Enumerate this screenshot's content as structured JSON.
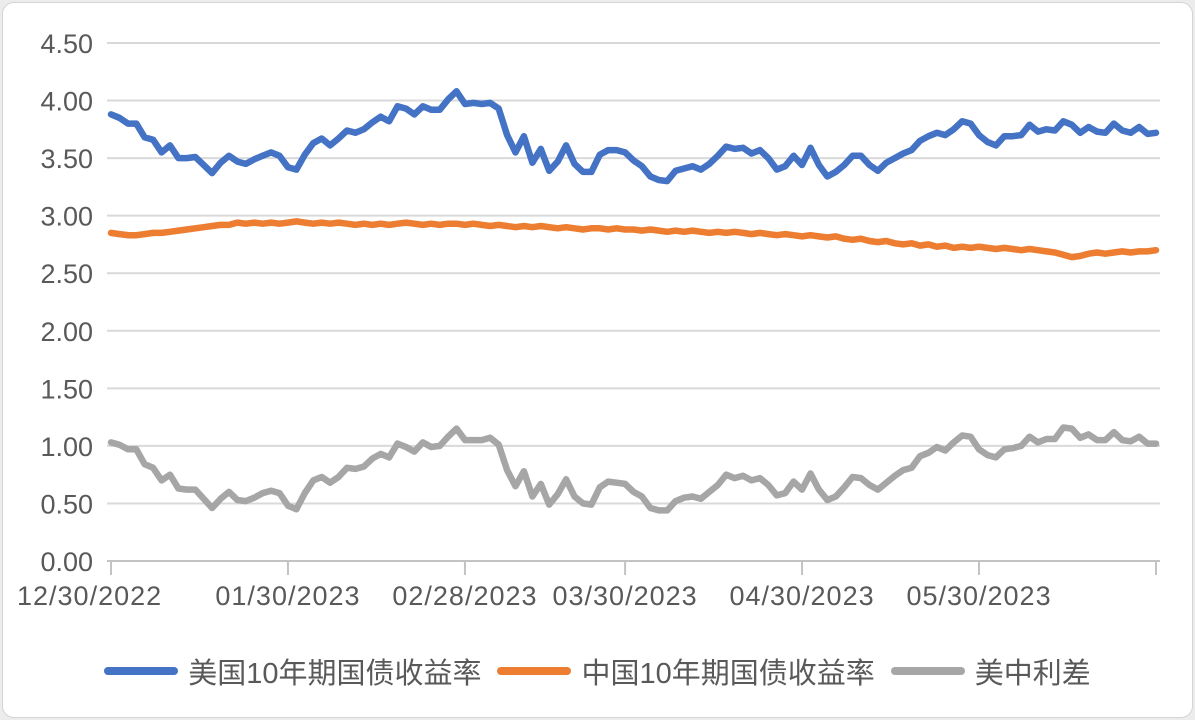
{
  "chart_data": {
    "type": "line",
    "title": "",
    "xlabel": "",
    "ylabel": "",
    "ylim": [
      0,
      4.5
    ],
    "y_tick_labels": [
      "0.00",
      "0.50",
      "1.00",
      "1.50",
      "2.00",
      "2.50",
      "3.00",
      "3.50",
      "4.00",
      "4.50"
    ],
    "x_tick_labels": [
      "12/30/2022",
      "01/30/2023",
      "02/28/2023",
      "03/30/2023",
      "04/30/2023",
      "05/30/2023"
    ],
    "x_tick_indices": [
      0,
      21,
      42,
      61,
      82,
      103
    ],
    "x_axis_end_tick_index": 124,
    "n_points": 125,
    "grid": "horizontal",
    "legend_position": "bottom",
    "grid_color": "#d9d9d9",
    "axis_color": "#c3c3c3",
    "tick_text_color": "#595959",
    "series": [
      {
        "id": "us-10y-yield",
        "name": "美国10年期国债收益率",
        "color": "#4472C4",
        "values": [
          3.88,
          3.85,
          3.8,
          3.8,
          3.68,
          3.66,
          3.55,
          3.61,
          3.5,
          3.5,
          3.51,
          3.44,
          3.37,
          3.46,
          3.52,
          3.47,
          3.45,
          3.49,
          3.52,
          3.55,
          3.52,
          3.42,
          3.4,
          3.53,
          3.63,
          3.67,
          3.61,
          3.67,
          3.74,
          3.72,
          3.75,
          3.81,
          3.86,
          3.82,
          3.95,
          3.93,
          3.88,
          3.95,
          3.92,
          3.92,
          4.01,
          4.08,
          3.97,
          3.98,
          3.97,
          3.98,
          3.93,
          3.7,
          3.55,
          3.69,
          3.46,
          3.58,
          3.39,
          3.47,
          3.61,
          3.45,
          3.38,
          3.38,
          3.53,
          3.57,
          3.57,
          3.55,
          3.48,
          3.43,
          3.34,
          3.31,
          3.3,
          3.39,
          3.41,
          3.43,
          3.4,
          3.45,
          3.52,
          3.6,
          3.58,
          3.59,
          3.54,
          3.57,
          3.5,
          3.4,
          3.43,
          3.52,
          3.44,
          3.59,
          3.44,
          3.34,
          3.38,
          3.44,
          3.52,
          3.52,
          3.44,
          3.39,
          3.46,
          3.5,
          3.54,
          3.57,
          3.65,
          3.69,
          3.72,
          3.7,
          3.75,
          3.82,
          3.8,
          3.7,
          3.64,
          3.61,
          3.69,
          3.69,
          3.7,
          3.79,
          3.73,
          3.75,
          3.74,
          3.82,
          3.79,
          3.72,
          3.77,
          3.73,
          3.72,
          3.8,
          3.74,
          3.72,
          3.77,
          3.71,
          3.72
        ]
      },
      {
        "id": "china-10y-yield",
        "name": "中国10年期国债收益率",
        "color": "#ED7D31",
        "values": [
          2.85,
          2.84,
          2.83,
          2.83,
          2.84,
          2.85,
          2.85,
          2.86,
          2.87,
          2.88,
          2.89,
          2.9,
          2.91,
          2.92,
          2.92,
          2.94,
          2.93,
          2.94,
          2.93,
          2.94,
          2.93,
          2.94,
          2.95,
          2.94,
          2.93,
          2.94,
          2.93,
          2.94,
          2.93,
          2.92,
          2.93,
          2.92,
          2.93,
          2.92,
          2.93,
          2.94,
          2.93,
          2.92,
          2.93,
          2.92,
          2.93,
          2.93,
          2.92,
          2.93,
          2.92,
          2.91,
          2.92,
          2.91,
          2.9,
          2.91,
          2.9,
          2.91,
          2.9,
          2.89,
          2.9,
          2.89,
          2.88,
          2.89,
          2.89,
          2.88,
          2.89,
          2.88,
          2.88,
          2.87,
          2.88,
          2.87,
          2.86,
          2.87,
          2.86,
          2.87,
          2.86,
          2.85,
          2.86,
          2.85,
          2.86,
          2.85,
          2.84,
          2.85,
          2.84,
          2.83,
          2.84,
          2.83,
          2.82,
          2.83,
          2.82,
          2.81,
          2.82,
          2.8,
          2.79,
          2.8,
          2.78,
          2.77,
          2.78,
          2.76,
          2.75,
          2.76,
          2.74,
          2.75,
          2.73,
          2.74,
          2.72,
          2.73,
          2.72,
          2.73,
          2.72,
          2.71,
          2.72,
          2.71,
          2.7,
          2.71,
          2.7,
          2.69,
          2.68,
          2.66,
          2.64,
          2.65,
          2.67,
          2.68,
          2.67,
          2.68,
          2.69,
          2.68,
          2.69,
          2.69,
          2.7
        ]
      },
      {
        "id": "us-china-spread",
        "name": "美中利差",
        "color": "#A6A6A6",
        "values": [
          1.03,
          1.01,
          0.97,
          0.97,
          0.84,
          0.81,
          0.7,
          0.75,
          0.63,
          0.62,
          0.62,
          0.54,
          0.46,
          0.54,
          0.6,
          0.53,
          0.52,
          0.55,
          0.59,
          0.61,
          0.59,
          0.48,
          0.45,
          0.59,
          0.7,
          0.73,
          0.68,
          0.73,
          0.81,
          0.8,
          0.82,
          0.89,
          0.93,
          0.9,
          1.02,
          0.99,
          0.95,
          1.03,
          0.99,
          1.0,
          1.08,
          1.15,
          1.05,
          1.05,
          1.05,
          1.07,
          1.01,
          0.79,
          0.65,
          0.78,
          0.56,
          0.67,
          0.49,
          0.58,
          0.71,
          0.56,
          0.5,
          0.49,
          0.64,
          0.69,
          0.68,
          0.67,
          0.6,
          0.56,
          0.46,
          0.44,
          0.44,
          0.52,
          0.55,
          0.56,
          0.54,
          0.6,
          0.66,
          0.75,
          0.72,
          0.74,
          0.7,
          0.72,
          0.66,
          0.57,
          0.59,
          0.69,
          0.62,
          0.76,
          0.62,
          0.53,
          0.56,
          0.64,
          0.73,
          0.72,
          0.66,
          0.62,
          0.68,
          0.74,
          0.79,
          0.81,
          0.91,
          0.94,
          0.99,
          0.96,
          1.03,
          1.09,
          1.08,
          0.97,
          0.92,
          0.9,
          0.97,
          0.98,
          1.0,
          1.08,
          1.03,
          1.06,
          1.06,
          1.16,
          1.15,
          1.07,
          1.1,
          1.05,
          1.05,
          1.12,
          1.05,
          1.04,
          1.08,
          1.02,
          1.02
        ]
      }
    ]
  }
}
